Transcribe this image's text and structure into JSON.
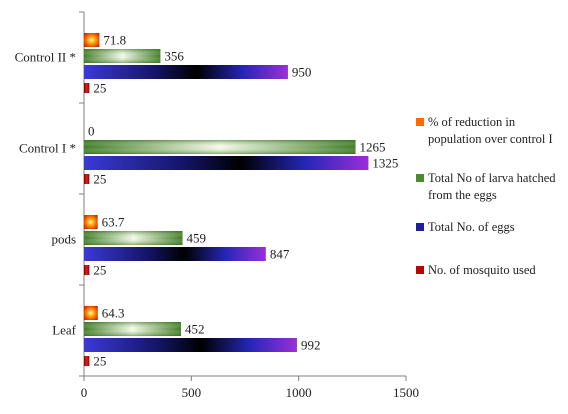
{
  "chart_data": {
    "type": "bar",
    "orientation": "horizontal",
    "categories": [
      "Leaf",
      "pods",
      "Control I *",
      "Control II *"
    ],
    "series": [
      {
        "name": "No. of mosquito used",
        "values": [
          25,
          25,
          25,
          25
        ],
        "color": "#c00000"
      },
      {
        "name": "Total No. of eggs",
        "values": [
          992,
          847,
          1325,
          950
        ],
        "color": "#1f1f9e"
      },
      {
        "name": "Total No of larva hatched from the eggs",
        "values": [
          452,
          459,
          1265,
          356
        ],
        "color": "#4e8a2e"
      },
      {
        "name": "% of reduction in population over control I",
        "values": [
          64.3,
          63.7,
          0,
          71.8
        ],
        "color": "#ff6a00"
      }
    ],
    "data_labels": [
      [
        "25",
        "25",
        "25",
        "25"
      ],
      [
        "992",
        "847",
        "1325",
        "950"
      ],
      [
        "452",
        "459",
        "1265",
        "356"
      ],
      [
        "64.3",
        "63.7",
        "0",
        "71.8"
      ]
    ],
    "xlim": [
      0,
      1500
    ],
    "xticks": [
      "0",
      "500",
      "1000",
      "1500"
    ],
    "legend_position": "right",
    "legend_order": [
      3,
      2,
      1,
      0
    ],
    "grid": false
  }
}
